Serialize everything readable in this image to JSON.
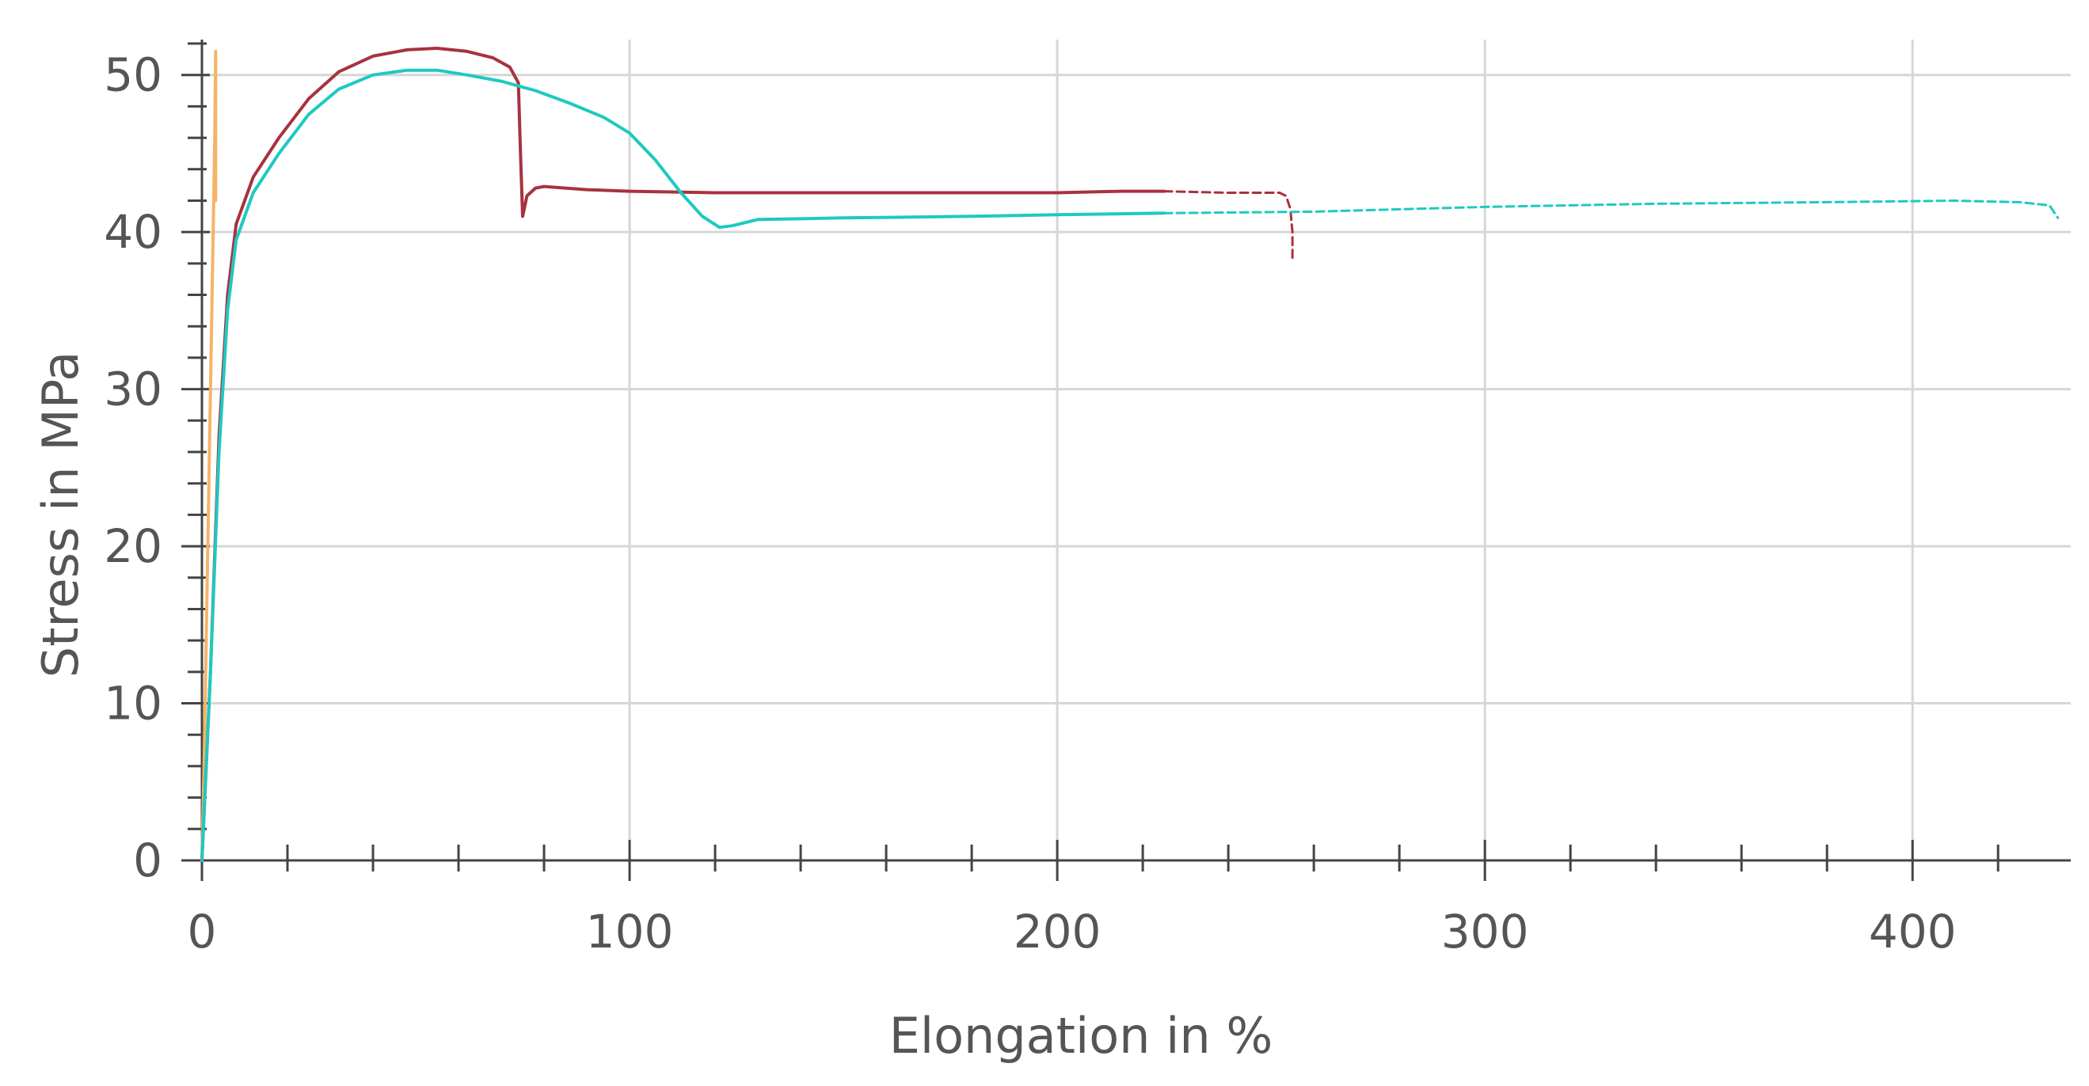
{
  "chart_data": {
    "type": "line",
    "title": "",
    "xlabel": "Elongation in %",
    "ylabel": "Stress in MPa",
    "xlim": [
      0,
      437
    ],
    "ylim": [
      0,
      52
    ],
    "x_ticks": [
      0,
      100,
      200,
      300,
      400
    ],
    "y_ticks": [
      0,
      10,
      20,
      30,
      40,
      50
    ],
    "x_tick_labels": [
      "0",
      "100",
      "200",
      "300",
      "400"
    ],
    "y_tick_labels": [
      "0",
      "10",
      "20",
      "30",
      "40",
      "50"
    ],
    "grid": true,
    "legend": "none",
    "series": [
      {
        "color": "#f5b466",
        "line_style": "solid",
        "x": [
          0,
          0.5,
          1,
          1.5,
          2,
          2.5,
          3,
          3.2,
          3.2
        ],
        "y": [
          0,
          6,
          14,
          22,
          30,
          38,
          46,
          51.5,
          42
        ]
      },
      {
        "color": "#a8323e",
        "line_style": "solid",
        "x": [
          0,
          2,
          4,
          6,
          8,
          12,
          18,
          25,
          32,
          40,
          48,
          55,
          62,
          68,
          72,
          74,
          74.5,
          75,
          76,
          78,
          80,
          85,
          90,
          100,
          120,
          150,
          180,
          200,
          215,
          225
        ],
        "y": [
          0,
          12,
          27,
          36,
          40.5,
          43.5,
          46,
          48.5,
          50.2,
          51.2,
          51.6,
          51.7,
          51.5,
          51.1,
          50.5,
          49.5,
          45,
          41,
          42.3,
          42.8,
          42.9,
          42.8,
          42.7,
          42.6,
          42.5,
          42.5,
          42.5,
          42.5,
          42.6,
          42.6
        ]
      },
      {
        "color": "#a8323e",
        "line_style": "dashed",
        "x": [
          225,
          240,
          252,
          253.5,
          254.5,
          255,
          255
        ],
        "y": [
          42.6,
          42.5,
          42.5,
          42.3,
          41.5,
          40,
          38.2
        ]
      },
      {
        "color": "#1fc9c0",
        "line_style": "solid",
        "x": [
          0,
          2,
          4,
          6,
          8,
          12,
          18,
          25,
          32,
          40,
          48,
          55,
          62,
          70,
          78,
          86,
          94,
          100,
          106,
          112,
          117,
          121,
          124,
          130,
          150,
          180,
          200,
          225
        ],
        "y": [
          0,
          12,
          26,
          35,
          39.5,
          42.5,
          45,
          47.5,
          49.1,
          50,
          50.3,
          50.3,
          50,
          49.6,
          49,
          48.2,
          47.3,
          46.3,
          44.6,
          42.5,
          41,
          40.3,
          40.4,
          40.8,
          40.9,
          41,
          41.1,
          41.2
        ]
      },
      {
        "color": "#1fc9c0",
        "line_style": "dashed",
        "x": [
          225,
          260,
          300,
          340,
          380,
          410,
          425,
          432,
          433,
          434
        ],
        "y": [
          41.2,
          41.3,
          41.6,
          41.8,
          41.9,
          42,
          41.9,
          41.7,
          41.3,
          40.9
        ]
      }
    ]
  }
}
